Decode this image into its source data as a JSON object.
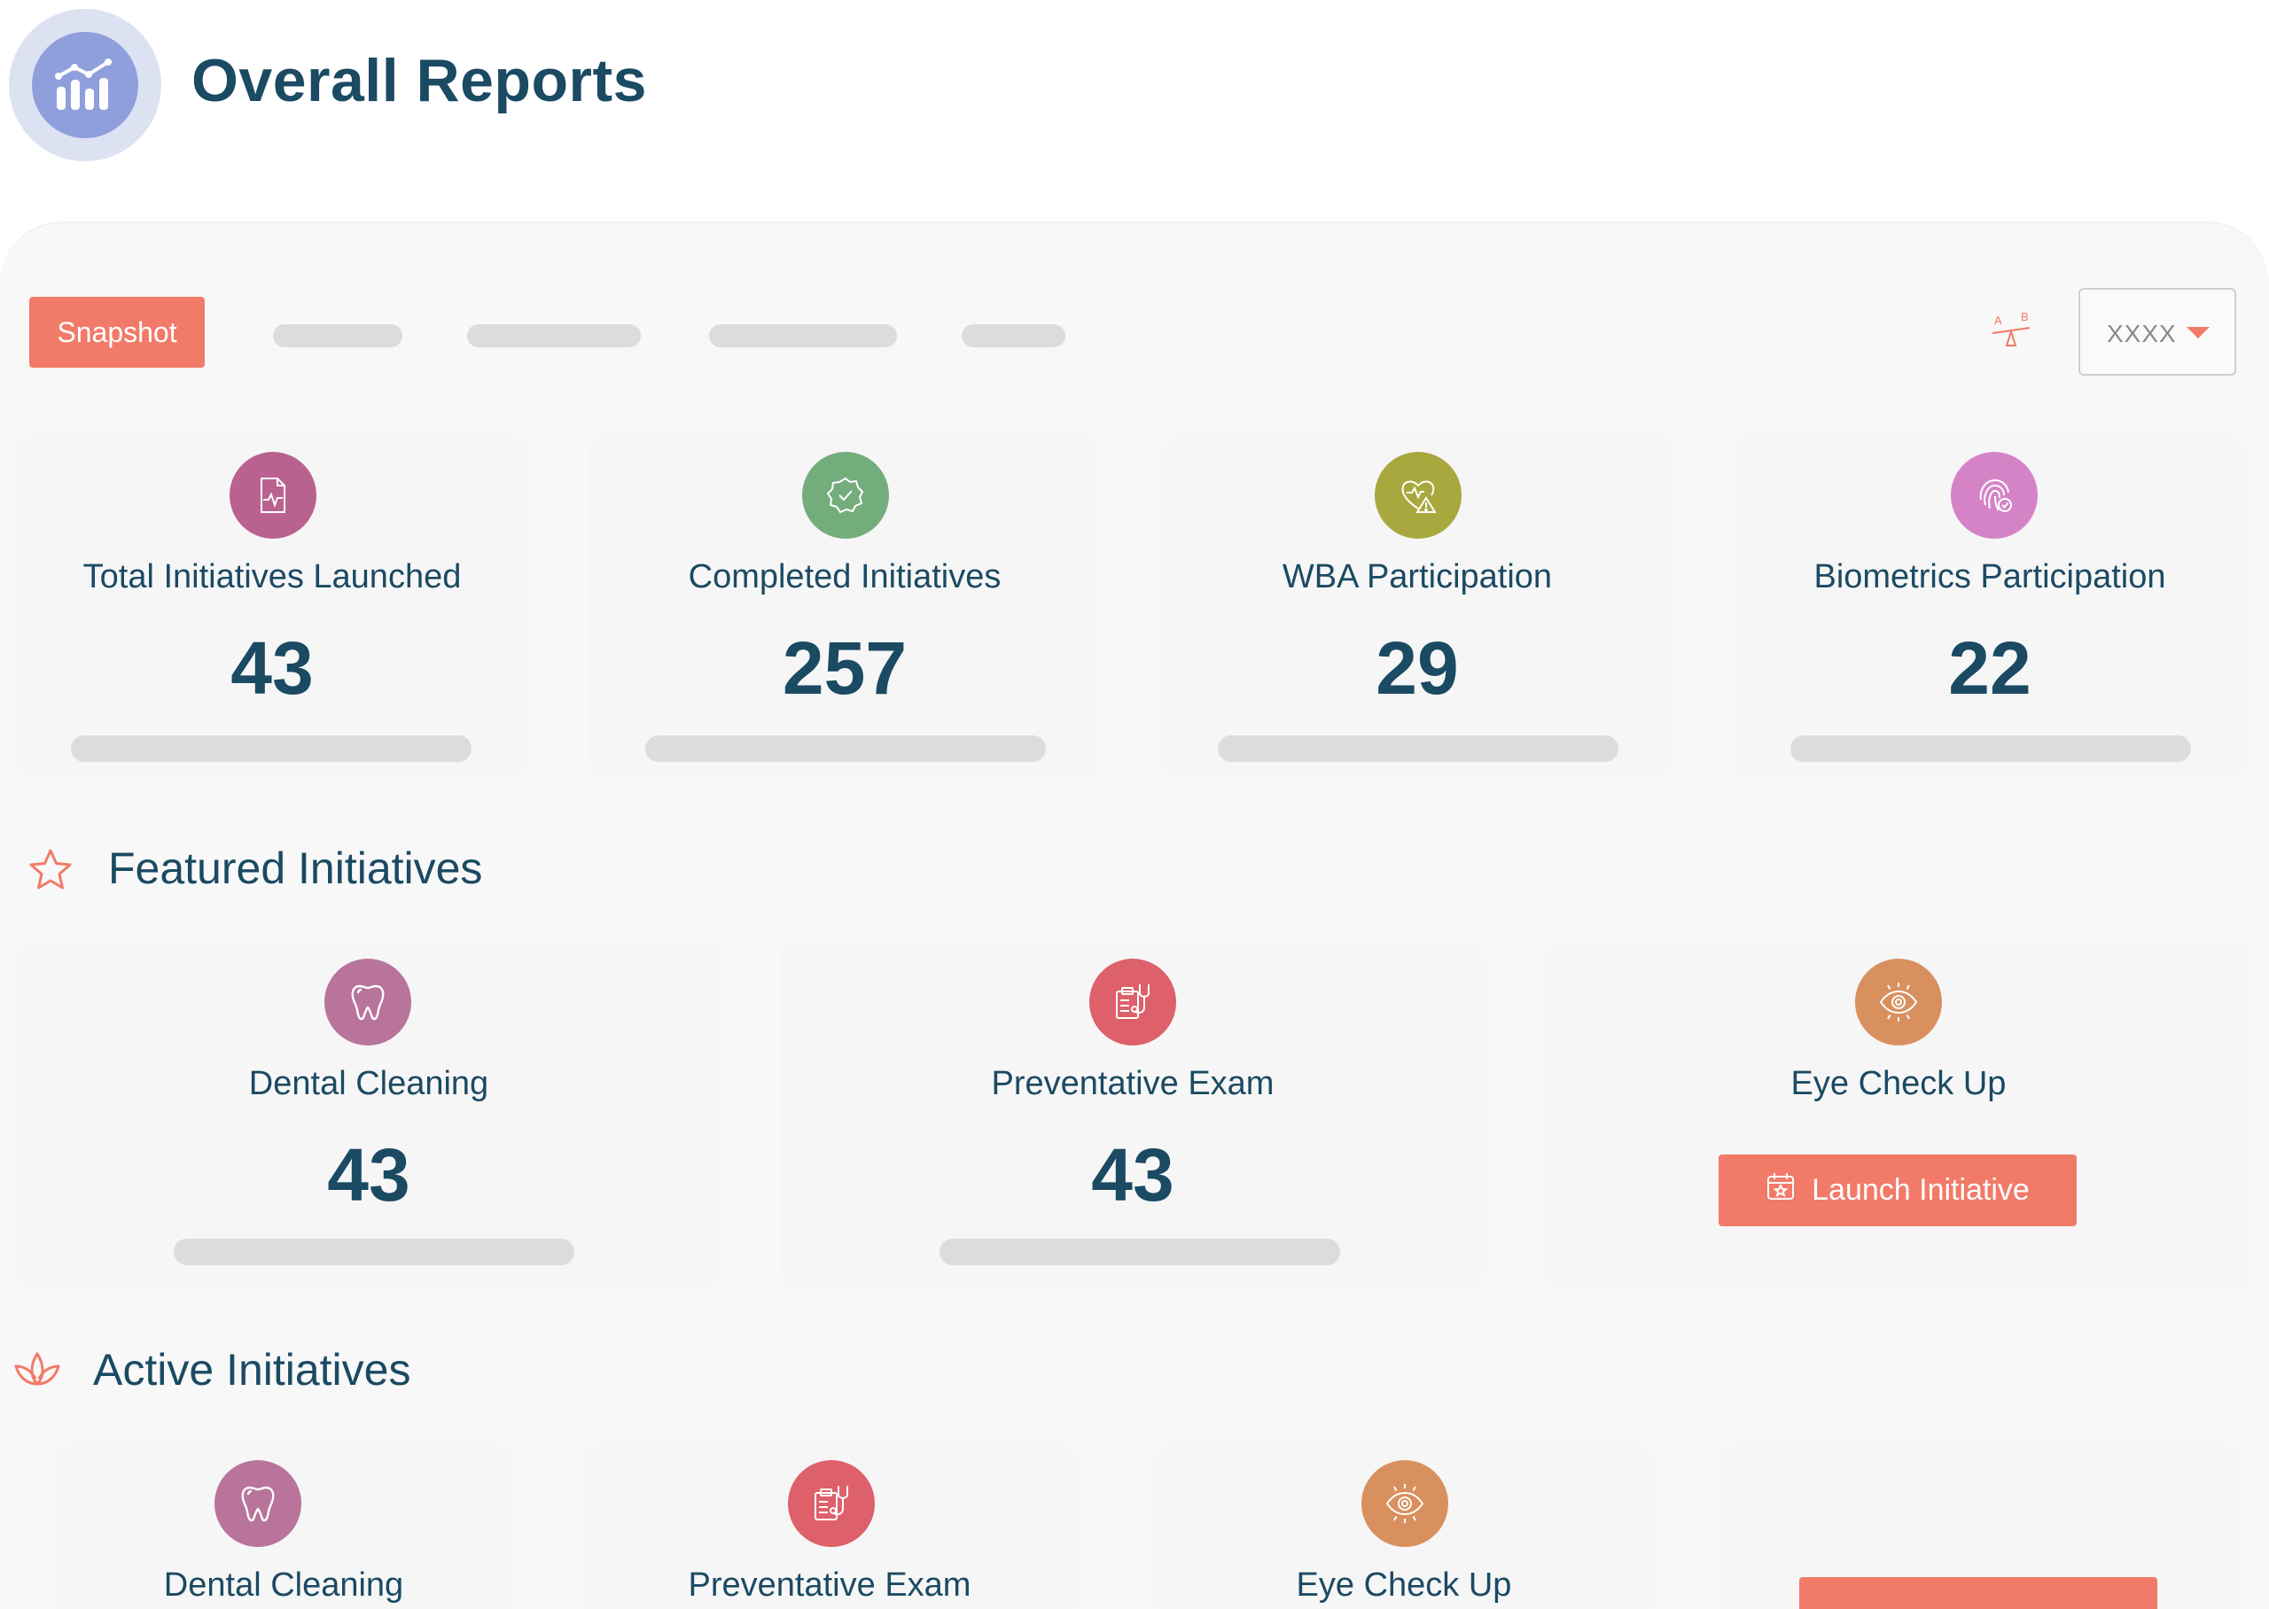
{
  "header": {
    "title": "Overall Reports",
    "logo_icon": "report-chart-icon"
  },
  "toolbar": {
    "snapshot_label": "Snapshot",
    "ab_icon": "ab-compare-icon",
    "dropdown_value": "XXXX"
  },
  "stats": [
    {
      "label": "Total Initiatives Launched",
      "value": "43",
      "icon": "health-report-icon",
      "color": "#b9628f"
    },
    {
      "label": "Completed Initiatives",
      "value": "257",
      "icon": "check-badge-icon",
      "color": "#74ad7c"
    },
    {
      "label": "WBA Participation",
      "value": "29",
      "icon": "heart-alert-icon",
      "color": "#a9a83f"
    },
    {
      "label": "Biometrics Participation",
      "value": "22",
      "icon": "fingerprint-check-icon",
      "color": "#d583c7"
    }
  ],
  "featured": {
    "title": "Featured Initiatives",
    "icon": "star-icon",
    "items": [
      {
        "label": "Dental Cleaning",
        "value": "43",
        "icon": "tooth-icon",
        "color": "#b8749b"
      },
      {
        "label": "Preventative Exam",
        "value": "43",
        "icon": "clipboard-stethoscope-icon",
        "color": "#dd606b"
      },
      {
        "label": "Eye Check Up",
        "icon": "eye-icon",
        "color": "#d9905f",
        "button_label": "Launch Initiative",
        "button_icon": "calendar-star-icon"
      }
    ]
  },
  "active": {
    "title": "Active Initiatives",
    "icon": "lotus-icon",
    "items": [
      {
        "label": "Dental Cleaning",
        "icon": "tooth-icon",
        "color": "#b8749b"
      },
      {
        "label": "Preventative Exam",
        "icon": "clipboard-stethoscope-icon",
        "color": "#dd606b"
      },
      {
        "label": "Eye Check Up",
        "icon": "eye-icon",
        "color": "#d9905f"
      }
    ]
  },
  "colors": {
    "accent": "#f27a68",
    "heading": "#1b4a63",
    "placeholder": "#dcdcdc"
  }
}
